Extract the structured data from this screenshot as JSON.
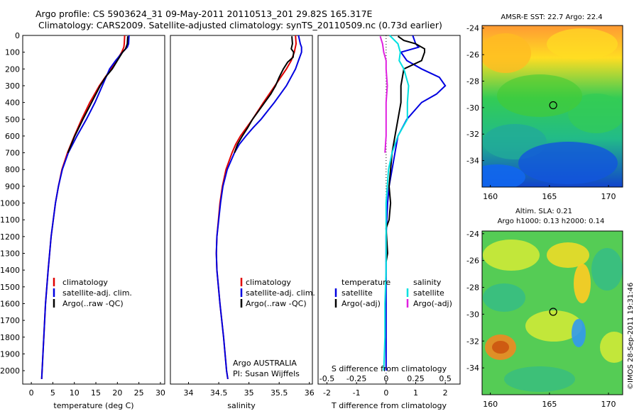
{
  "header": {
    "line1": "Argo profile: CS 5903624_31 09-May-2011 20110513_201 29.82S 165.317E",
    "line2": "Climatology: CARS2009. Satellite-adjusted climatology: synTS_20110509.nc (0.73d earlier)"
  },
  "colors": {
    "climatology": "#e00000",
    "satellite": "#0000e0",
    "argo": "#000000",
    "sat_salinity": "#00e0e0",
    "argo_salinity": "#e020e0"
  },
  "chart_data": [
    {
      "type": "line",
      "title": "",
      "xlabel": "temperature (deg C)",
      "ylabel": "",
      "xlim": [
        -2,
        31
      ],
      "ylim": [
        2080,
        0
      ],
      "x_ticks": [
        0,
        5,
        10,
        15,
        20,
        25,
        30
      ],
      "y_ticks": [
        0,
        100,
        200,
        300,
        400,
        500,
        600,
        700,
        800,
        900,
        1000,
        1100,
        1200,
        1300,
        1400,
        1500,
        1600,
        1700,
        1800,
        1900,
        2000
      ],
      "legend": [
        "climatology",
        "satellite-adj. clim.",
        "Argo(..raw -QC)"
      ],
      "legend_position": "lower-right",
      "series": [
        {
          "name": "climatology",
          "depth": [
            0,
            50,
            70,
            100,
            150,
            200,
            300,
            400,
            500,
            600,
            700,
            800,
            900,
            1000,
            1200,
            1400,
            1600,
            1800,
            2000,
            2050
          ],
          "values": [
            21.7,
            21.6,
            21.5,
            21.0,
            19.8,
            18.5,
            15.8,
            13.6,
            11.7,
            10.0,
            8.4,
            7.1,
            6.3,
            5.6,
            4.6,
            3.9,
            3.3,
            2.9,
            2.5,
            2.4
          ]
        },
        {
          "name": "satellite-adj. clim.",
          "depth": [
            0,
            50,
            70,
            100,
            150,
            200,
            300,
            400,
            500,
            600,
            700,
            800,
            900,
            1000,
            1200,
            1400,
            1600,
            1800,
            2000,
            2050
          ],
          "values": [
            22.7,
            22.6,
            22.3,
            21.2,
            19.6,
            18.2,
            16.5,
            14.8,
            12.8,
            10.6,
            8.6,
            7.2,
            6.3,
            5.6,
            4.6,
            3.9,
            3.3,
            2.9,
            2.5,
            2.4
          ]
        },
        {
          "name": "Argo(..raw -QC)",
          "depth": [
            5,
            50,
            80,
            100,
            150,
            200,
            250,
            300,
            400,
            500,
            600,
            700
          ],
          "values": [
            22.4,
            22.3,
            21.9,
            21.2,
            20.0,
            18.8,
            17.2,
            16.0,
            14.0,
            12.0,
            10.1,
            8.5
          ]
        }
      ]
    },
    {
      "type": "line",
      "title": "",
      "xlabel": "salinity",
      "ylabel": "",
      "xlim": [
        33.7,
        36.05
      ],
      "ylim": [
        2080,
        0
      ],
      "x_ticks": [
        34,
        34.5,
        35,
        35.5,
        36
      ],
      "legend": [
        "climatology",
        "satellite-adj. clim.",
        "Argo(..raw -QC)"
      ],
      "legend_position": "lower-right",
      "annotation": [
        "Argo AUSTRALIA",
        "PI: Susan Wijffels"
      ],
      "series": [
        {
          "name": "climatology",
          "depth": [
            0,
            50,
            100,
            150,
            200,
            300,
            400,
            500,
            550,
            600,
            650,
            700,
            800,
            900,
            1000,
            1200,
            1300,
            1400,
            1600,
            1800,
            2000,
            2050
          ],
          "values": [
            35.77,
            35.78,
            35.75,
            35.7,
            35.62,
            35.43,
            35.24,
            35.06,
            34.96,
            34.86,
            34.78,
            34.72,
            34.62,
            34.56,
            34.52,
            34.47,
            34.46,
            34.47,
            34.52,
            34.58,
            34.63,
            34.65
          ]
        },
        {
          "name": "satellite-adj. clim.",
          "depth": [
            0,
            50,
            70,
            100,
            150,
            200,
            300,
            400,
            500,
            550,
            600,
            650,
            700,
            800,
            900,
            1000,
            1200,
            1300,
            1400,
            1600,
            1800,
            2000,
            2050
          ],
          "values": [
            35.82,
            35.85,
            35.87,
            35.87,
            35.82,
            35.77,
            35.62,
            35.42,
            35.2,
            35.07,
            34.95,
            34.84,
            34.76,
            34.64,
            34.57,
            34.53,
            34.47,
            34.46,
            34.47,
            34.52,
            34.58,
            34.63,
            34.65
          ]
        },
        {
          "name": "Argo(..raw -QC)",
          "depth": [
            5,
            50,
            80,
            100,
            130,
            160,
            200,
            250,
            300,
            350,
            400,
            450,
            500,
            550,
            600,
            650,
            700
          ],
          "values": [
            35.71,
            35.72,
            35.7,
            35.74,
            35.73,
            35.64,
            35.57,
            35.5,
            35.44,
            35.36,
            35.26,
            35.16,
            35.06,
            34.98,
            34.89,
            34.81,
            34.76
          ]
        }
      ]
    },
    {
      "type": "line",
      "title": "",
      "xlabel": "T difference from climatology",
      "xlabel_top": "S difference from climatology",
      "ylabel": "",
      "xlim": [
        -2.3,
        2.5
      ],
      "ylim": [
        2080,
        0
      ],
      "x_ticks_T": [
        -2,
        -1,
        0,
        1,
        2
      ],
      "x_ticks_S": [
        -0.5,
        -0.25,
        0,
        0.25,
        0.5
      ],
      "legend_temperature_title": "temperature",
      "legend_salinity_title": "salinity",
      "legend": [
        "satellite",
        "Argo(-adj)",
        "satellite",
        "Argo(-adj)"
      ],
      "series": [
        {
          "name": "satellite",
          "group": "temperature",
          "depth": [
            0,
            50,
            70,
            100,
            150,
            200,
            250,
            300,
            350,
            400,
            500,
            600,
            700,
            800,
            900,
            1000,
            1200,
            1400,
            1600,
            1800,
            2000
          ],
          "values": [
            0.9,
            1.0,
            1.1,
            0.5,
            0.7,
            1.2,
            1.8,
            2.0,
            1.7,
            1.2,
            0.7,
            0.4,
            0.3,
            0.2,
            0.1,
            0.05,
            0.0,
            0.0,
            0.0,
            0.0,
            0.0
          ]
        },
        {
          "name": "Argo(-adj)",
          "group": "temperature",
          "depth": [
            5,
            30,
            50,
            80,
            100,
            150,
            200,
            300,
            400,
            500,
            600,
            700,
            800,
            900,
            1000,
            1100,
            1150,
            1300,
            1350
          ],
          "values": [
            0.4,
            0.6,
            1.0,
            1.3,
            1.3,
            1.2,
            0.6,
            0.5,
            0.5,
            0.4,
            0.3,
            0.2,
            0.15,
            0.1,
            0.15,
            0.1,
            0.0,
            0.05,
            0.0
          ]
        },
        {
          "name": "satellite",
          "group": "salinity",
          "depth": [
            0,
            50,
            100,
            150,
            200,
            300,
            400,
            500,
            600,
            700,
            800,
            1000,
            1200,
            1400,
            1600,
            1800,
            2000
          ],
          "values": [
            0.03,
            0.1,
            0.12,
            0.11,
            0.15,
            0.19,
            0.18,
            0.18,
            0.1,
            0.05,
            0.02,
            0.0,
            0.0,
            0.0,
            -0.01,
            -0.01,
            -0.02
          ]
        },
        {
          "name": "Argo(-adj)",
          "group": "salinity",
          "depth": [
            5,
            50,
            100,
            150,
            200,
            300,
            400,
            500,
            600,
            700
          ],
          "values": [
            -0.05,
            -0.03,
            -0.02,
            0.0,
            0.0,
            0.01,
            0.0,
            0.0,
            0.0,
            -0.01
          ]
        }
      ]
    },
    {
      "type": "heatmap",
      "title": "AMSR-E SST: 22.7 Argo: 22.4",
      "xlim": [
        159.3,
        171.2
      ],
      "ylim": [
        -36,
        -23.8
      ],
      "x_ticks": [
        160,
        165,
        170
      ],
      "y_ticks": [
        -24,
        -26,
        -28,
        -30,
        -32,
        -34
      ],
      "marker": {
        "lon": 165.317,
        "lat": -29.82
      }
    },
    {
      "type": "heatmap",
      "title": "Altim. SLA: 0.21",
      "subtitle": "Argo h1000: 0.13 h2000: 0.14",
      "xlim": [
        159.3,
        171.2
      ],
      "ylim": [
        -36,
        -23.8
      ],
      "x_ticks": [
        160,
        165,
        170
      ],
      "y_ticks": [
        -24,
        -26,
        -28,
        -30,
        -32,
        -34
      ],
      "marker": {
        "lon": 165.317,
        "lat": -29.82
      }
    }
  ],
  "footer": {
    "stamp": "©IMOS 28-Sep-2011 19:31:46"
  }
}
